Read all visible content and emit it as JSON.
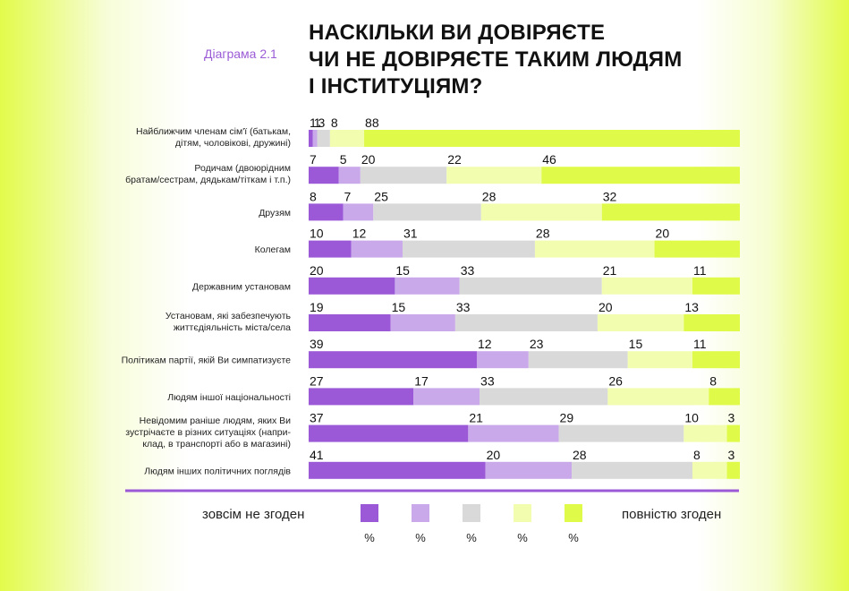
{
  "header": {
    "diagram_label": "Діаграма 2.1",
    "title_lines": [
      "НАСКІЛЬКИ ВИ ДОВІРЯЄТЕ",
      "ЧИ НЕ ДОВІРЯЄТЕ ТАКИМ ЛЮДЯМ",
      "І ІНСТИТУЦІЯМ?"
    ]
  },
  "legend": {
    "left_label": "зовсім не згоден",
    "right_label": "повністю згоден",
    "unit": "%"
  },
  "colors": [
    "#9b59d8",
    "#c9a9ea",
    "#d9d9d9",
    "#f2fdb0",
    "#e0fa4a"
  ],
  "chart_data": {
    "type": "bar",
    "orientation": "horizontal-stacked-100",
    "categories": [
      [
        "Найближчим членам сім'ї (батькам,",
        "дітям, чоловікові, дружині)"
      ],
      [
        "Родичам (двоюрідним",
        "братам/сестрам, дядькам/тіткам і т.п.)"
      ],
      [
        "Друзям"
      ],
      [
        "Колегам"
      ],
      [
        "Державним установам"
      ],
      [
        "Установам, які забезпечують",
        "життєдіяльність міста/села"
      ],
      [
        "Політикам партії, якій Ви симпатизуєте"
      ],
      [
        "Людям іншої національності"
      ],
      [
        "Невідомим раніше людям, яких Ви",
        "зустрічаєте в різних ситуаціях (напри-",
        "клад, в транспорті або в магазині)"
      ],
      [
        "Людям інших політичних поглядів"
      ]
    ],
    "series": [
      {
        "values": [
          1,
          7,
          8,
          10,
          20,
          19,
          39,
          27,
          37,
          41
        ]
      },
      {
        "values": [
          1,
          5,
          7,
          12,
          15,
          15,
          12,
          17,
          21,
          20
        ]
      },
      {
        "values": [
          3,
          20,
          25,
          31,
          33,
          33,
          23,
          33,
          29,
          28
        ]
      },
      {
        "values": [
          8,
          22,
          28,
          28,
          21,
          20,
          15,
          26,
          10,
          8
        ]
      },
      {
        "values": [
          88,
          46,
          32,
          20,
          11,
          13,
          11,
          8,
          3,
          3
        ]
      }
    ]
  }
}
